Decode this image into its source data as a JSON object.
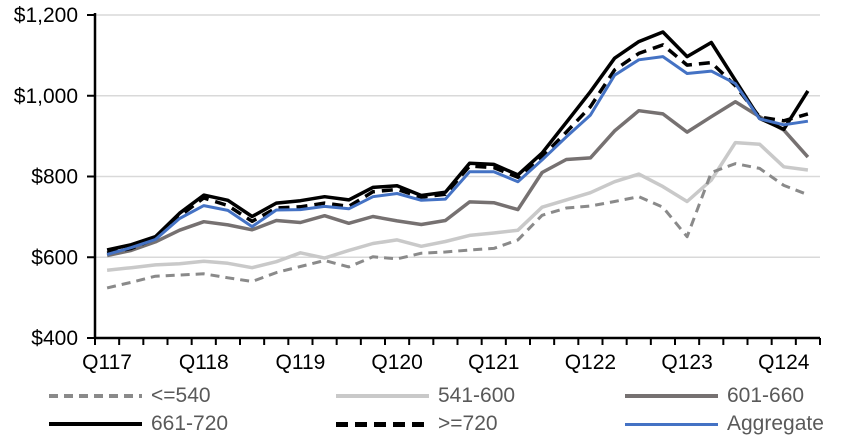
{
  "chart_data": {
    "type": "line",
    "title": "",
    "x_axis": {
      "labels": [
        "Q117",
        "Q118",
        "Q119",
        "Q120",
        "Q121",
        "Q122",
        "Q123",
        "Q124"
      ],
      "label_point_indices": [
        0,
        4,
        8,
        12,
        16,
        20,
        24,
        28
      ],
      "n_points": 30,
      "points_per_year": 4,
      "note": "quarterly points from Q1 2017 through Q2 2024, minor tick each quarter"
    },
    "y_axis": {
      "min": 400,
      "max": 1200,
      "tick_step": 200,
      "tick_labels": [
        "$400",
        "$600",
        "$800",
        "$1,000",
        "$1,200"
      ],
      "unit": "USD"
    },
    "grid": "horizontal",
    "legend_position": "bottom",
    "draw_order": [
      1,
      0,
      2,
      3,
      4,
      5
    ],
    "series": [
      {
        "name": "<=540",
        "color": "#8A8A8A",
        "dash": "dashed",
        "width": 3,
        "values": [
          524,
          538,
          553,
          556,
          559,
          549,
          540,
          562,
          577,
          592,
          576,
          601,
          596,
          610,
          613,
          618,
          622,
          643,
          704,
          722,
          727,
          738,
          750,
          724,
          651,
          810,
          832,
          820,
          778,
          755
        ]
      },
      {
        "name": "541-600",
        "color": "#C9C9C9",
        "dash": "solid",
        "width": 3.5,
        "values": [
          568,
          574,
          581,
          584,
          590,
          585,
          574,
          589,
          611,
          598,
          617,
          634,
          643,
          627,
          639,
          654,
          660,
          667,
          724,
          742,
          760,
          787,
          806,
          775,
          738,
          791,
          884,
          880,
          824,
          816
        ]
      },
      {
        "name": "601-660",
        "color": "#767171",
        "dash": "solid",
        "width": 3.5,
        "values": [
          604,
          617,
          638,
          667,
          688,
          680,
          668,
          691,
          686,
          703,
          684,
          701,
          690,
          681,
          691,
          737,
          735,
          718,
          810,
          842,
          846,
          913,
          963,
          955,
          910,
          948,
          985,
          948,
          915,
          848
        ]
      },
      {
        "name": "661-720",
        "color": "#000000",
        "dash": "solid",
        "width": 3.5,
        "values": [
          618,
          631,
          651,
          709,
          754,
          741,
          701,
          734,
          740,
          750,
          742,
          773,
          777,
          753,
          761,
          833,
          830,
          804,
          858,
          934,
          1010,
          1093,
          1134,
          1158,
          1097,
          1132,
          1038,
          944,
          917,
          1012
        ]
      },
      {
        "name": ">=720",
        "color": "#000000",
        "dash": "dashed",
        "width": 3.5,
        "values": [
          610,
          622,
          646,
          702,
          747,
          728,
          689,
          722,
          725,
          734,
          726,
          762,
          768,
          749,
          756,
          826,
          822,
          798,
          849,
          910,
          973,
          1064,
          1105,
          1126,
          1076,
          1082,
          1025,
          947,
          938,
          955
        ]
      },
      {
        "name": "Aggregate",
        "color": "#4472C4",
        "dash": "solid",
        "width": 3,
        "values": [
          607,
          624,
          644,
          696,
          728,
          716,
          676,
          717,
          718,
          726,
          720,
          750,
          758,
          741,
          744,
          812,
          812,
          787,
          841,
          898,
          952,
          1051,
          1089,
          1097,
          1055,
          1061,
          1030,
          943,
          928,
          937
        ]
      }
    ],
    "gridline_color": "#D9D9D9",
    "axis_color": "#000000",
    "tick_label_color": "#000000",
    "legend_text_color": "#595959"
  }
}
